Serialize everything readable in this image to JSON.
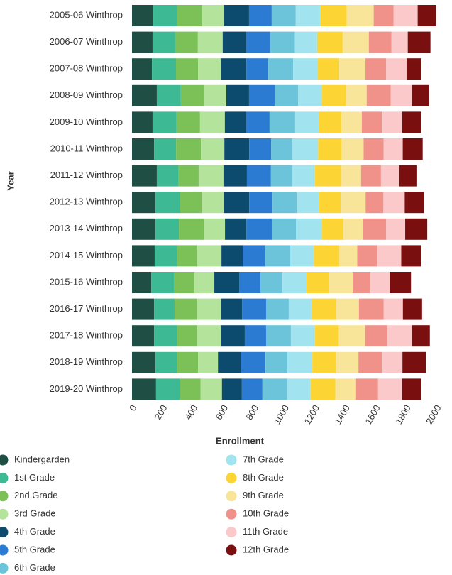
{
  "chart_data": {
    "type": "stacked-barh",
    "x_label": "Enrollment",
    "y_label": "Year",
    "categories": [
      "2005-06 Winthrop",
      "2006-07 Winthrop",
      "2007-08 Winthrop",
      "2008-09 Winthrop",
      "2009-10 Winthrop",
      "2010-11 Winthrop",
      "2011-12 Winthrop",
      "2012-13 Winthrop",
      "2013-14 Winthrop",
      "2014-15 Winthrop",
      "2015-16 Winthrop",
      "2016-17 Winthrop",
      "2017-18 Winthrop",
      "2018-19 Winthrop",
      "2019-20 Winthrop"
    ],
    "xlim": [
      0,
      2000
    ],
    "xticks": [
      0,
      200,
      400,
      600,
      800,
      1000,
      1200,
      1400,
      1600,
      1800,
      2000
    ],
    "grid": false,
    "series": [
      {
        "name": "Kindergarden",
        "color": "#1f4e45",
        "values": [
          140,
          135,
          131,
          163,
          135,
          145,
          163,
          154,
          154,
          149,
          126,
          145,
          145,
          154,
          158
        ]
      },
      {
        "name": "1st Grade",
        "color": "#3dba93",
        "values": [
          158,
          149,
          158,
          158,
          158,
          145,
          140,
          163,
          154,
          145,
          149,
          135,
          149,
          140,
          158
        ]
      },
      {
        "name": "2nd Grade",
        "color": "#7bc158",
        "values": [
          163,
          149,
          145,
          154,
          154,
          163,
          135,
          140,
          163,
          131,
          135,
          149,
          135,
          140,
          135
        ]
      },
      {
        "name": "3rd Grade",
        "color": "#b4e39b",
        "values": [
          145,
          163,
          149,
          145,
          163,
          154,
          163,
          145,
          140,
          163,
          131,
          154,
          154,
          131,
          140
        ]
      },
      {
        "name": "4th Grade",
        "color": "#0c4a6e",
        "values": [
          163,
          154,
          168,
          149,
          140,
          163,
          154,
          168,
          140,
          140,
          163,
          140,
          158,
          149,
          131
        ]
      },
      {
        "name": "5th Grade",
        "color": "#2b7bd3",
        "values": [
          149,
          158,
          145,
          168,
          154,
          145,
          158,
          154,
          168,
          145,
          140,
          158,
          140,
          163,
          135
        ]
      },
      {
        "name": "6th Grade",
        "color": "#6cc4da",
        "values": [
          158,
          163,
          163,
          154,
          168,
          140,
          140,
          158,
          158,
          168,
          145,
          149,
          163,
          145,
          163
        ]
      },
      {
        "name": "7th Grade",
        "color": "#a2e3f0",
        "values": [
          163,
          145,
          158,
          158,
          154,
          168,
          149,
          145,
          172,
          154,
          158,
          149,
          158,
          163,
          154
        ]
      },
      {
        "name": "8th Grade",
        "color": "#fcd535",
        "values": [
          172,
          168,
          145,
          158,
          149,
          154,
          172,
          145,
          140,
          168,
          149,
          163,
          158,
          154,
          163
        ]
      },
      {
        "name": "9th Grade",
        "color": "#f8e59a",
        "values": [
          177,
          172,
          172,
          135,
          135,
          145,
          131,
          163,
          126,
          117,
          154,
          149,
          172,
          149,
          135
        ]
      },
      {
        "name": "10th Grade",
        "color": "#f0928a",
        "values": [
          131,
          149,
          135,
          158,
          131,
          131,
          131,
          117,
          154,
          131,
          117,
          163,
          145,
          154,
          145
        ]
      },
      {
        "name": "11th Grade",
        "color": "#fbc9c9",
        "values": [
          158,
          107,
          135,
          140,
          135,
          126,
          121,
          140,
          126,
          158,
          126,
          126,
          163,
          135,
          158
        ]
      },
      {
        "name": "12th Grade",
        "color": "#7a0f0f",
        "values": [
          121,
          149,
          98,
          112,
          126,
          131,
          112,
          126,
          145,
          131,
          140,
          126,
          117,
          154,
          126
        ]
      }
    ]
  }
}
